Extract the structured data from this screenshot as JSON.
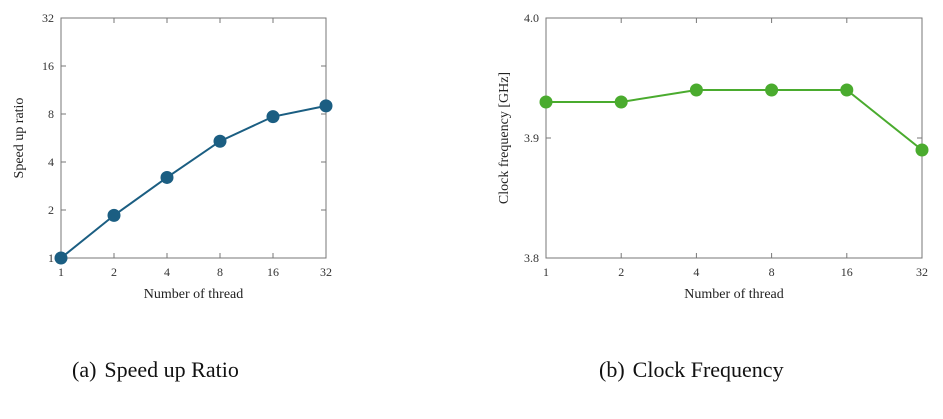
{
  "figure": {
    "caption_a": {
      "tag": "(a)",
      "text": "Speed up Ratio"
    },
    "caption_b": {
      "tag": "(b)",
      "text": "Clock Frequency"
    }
  },
  "chart_data": [
    {
      "type": "line",
      "id": "speedup",
      "title": "",
      "xlabel": "Number of thread",
      "ylabel": "Speed up ratio",
      "x": [
        1,
        2,
        4,
        8,
        16,
        32
      ],
      "x_tick_labels": [
        "1",
        "2",
        "4",
        "8",
        "16",
        "32"
      ],
      "x_scale": "log2",
      "y_scale": "log2",
      "y_ticks": [
        1,
        2,
        4,
        8,
        16,
        32
      ],
      "y_tick_labels": [
        "1",
        "2",
        "4",
        "8",
        "16",
        "32"
      ],
      "ylim": [
        1,
        32
      ],
      "series": [
        {
          "values": [
            1.0,
            1.85,
            3.2,
            5.4,
            7.7,
            9.0
          ],
          "color": "#1b5e82"
        }
      ],
      "grid": false
    },
    {
      "type": "line",
      "id": "clock",
      "title": "",
      "xlabel": "Number of thread",
      "ylabel": "Clock frequency [GHz]",
      "x": [
        1,
        2,
        4,
        8,
        16,
        32
      ],
      "x_tick_labels": [
        "1",
        "2",
        "4",
        "8",
        "16",
        "32"
      ],
      "x_scale": "log2",
      "y_ticks": [
        3.8,
        3.9,
        4.0
      ],
      "y_tick_labels": [
        "3.8",
        "3.9",
        "4.0"
      ],
      "ylim": [
        3.8,
        4.0
      ],
      "series": [
        {
          "values": [
            3.93,
            3.93,
            3.94,
            3.94,
            3.94,
            3.89
          ],
          "color": "#4aab2e"
        }
      ],
      "grid": false
    }
  ]
}
